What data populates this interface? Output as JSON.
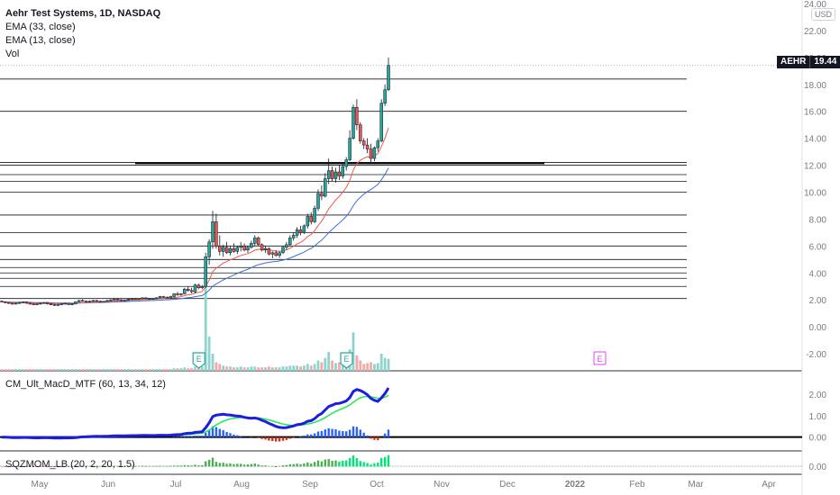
{
  "header": {
    "symbol_line": "Aehr Test Systems, 1D, NASDAQ",
    "ema_long": "EMA (33, close)",
    "ema_short": "EMA (13, close)",
    "volume": "Vol",
    "currency": "USD"
  },
  "price_label": {
    "ticker": "AEHR",
    "value": "19.44"
  },
  "indicators": {
    "macd": "CM_Ult_MacD_MTF (60, 13, 34, 12)",
    "sqzmom": "SQZMOM_LB (20, 2, 20, 1.5)"
  },
  "colors": {
    "up": "#26a69a",
    "down": "#ef5350",
    "ema13": "#f05a4a",
    "ema33": "#3d6fd4",
    "macd_line_up": "#2962ff",
    "macd_signal": "#2ee65a",
    "macd_line_down": "#1a1ee0",
    "hist_pos": "#00e5ff",
    "hist_neg": "#d0311a",
    "sqz_pos": "#00e676",
    "sqz_neg": "#7a1f1f",
    "earnings_teal": "#26a69a",
    "earnings_pink": "#e040fb"
  },
  "chart_data": {
    "type": "candlestick",
    "x_labels": [
      "May",
      "Jun",
      "Jul",
      "Aug",
      "Sep",
      "Oct",
      "Nov",
      "Dec",
      "2022",
      "Feb",
      "Mar",
      "Apr"
    ],
    "price_axis_ticks": [
      "24.00",
      "22.00",
      "20.00",
      "18.00",
      "16.00",
      "14.00",
      "12.00",
      "10.00",
      "8.00",
      "6.00",
      "4.00",
      "2.00",
      "0.00",
      "-2.00"
    ],
    "ylim": [
      -3,
      24
    ],
    "horizontal_levels": [
      18.4,
      16.0,
      12.2,
      12.0,
      11.3,
      10.8,
      10.0,
      8.3,
      7.0,
      6.0,
      5.0,
      4.4,
      4.0,
      3.6,
      3.0,
      2.1
    ],
    "support_line": {
      "value": 12.15
    },
    "candles": [
      [
        1.9,
        1.95,
        1.8,
        1.85
      ],
      [
        1.85,
        1.9,
        1.75,
        1.8
      ],
      [
        1.8,
        1.85,
        1.7,
        1.75
      ],
      [
        1.75,
        1.8,
        1.65,
        1.7
      ],
      [
        1.7,
        1.8,
        1.65,
        1.75
      ],
      [
        1.75,
        1.85,
        1.7,
        1.8
      ],
      [
        1.8,
        1.9,
        1.75,
        1.85
      ],
      [
        1.85,
        1.9,
        1.7,
        1.75
      ],
      [
        1.75,
        1.8,
        1.65,
        1.7
      ],
      [
        1.7,
        1.75,
        1.6,
        1.65
      ],
      [
        1.65,
        1.75,
        1.6,
        1.7
      ],
      [
        1.7,
        1.8,
        1.65,
        1.75
      ],
      [
        1.75,
        1.85,
        1.7,
        1.8
      ],
      [
        1.8,
        1.85,
        1.65,
        1.7
      ],
      [
        1.7,
        1.75,
        1.6,
        1.65
      ],
      [
        1.65,
        1.7,
        1.55,
        1.6
      ],
      [
        1.6,
        1.7,
        1.55,
        1.65
      ],
      [
        1.65,
        1.75,
        1.6,
        1.7
      ],
      [
        1.7,
        1.8,
        1.65,
        1.75
      ],
      [
        1.75,
        1.8,
        1.6,
        1.65
      ],
      [
        1.65,
        1.75,
        1.6,
        1.7
      ],
      [
        1.7,
        1.9,
        1.65,
        1.85
      ],
      [
        1.85,
        2.0,
        1.8,
        1.95
      ],
      [
        1.95,
        2.05,
        1.85,
        1.9
      ],
      [
        1.9,
        1.95,
        1.8,
        1.85
      ],
      [
        1.85,
        1.95,
        1.8,
        1.9
      ],
      [
        1.9,
        2.0,
        1.85,
        1.95
      ],
      [
        1.95,
        2.0,
        1.85,
        1.9
      ],
      [
        1.9,
        1.95,
        1.8,
        1.85
      ],
      [
        1.85,
        1.9,
        1.8,
        1.9
      ],
      [
        1.9,
        2.0,
        1.85,
        1.95
      ],
      [
        1.95,
        2.05,
        1.9,
        2.0
      ],
      [
        2.0,
        2.1,
        1.95,
        2.05
      ],
      [
        2.05,
        2.1,
        1.95,
        2.0
      ],
      [
        2.0,
        2.05,
        1.9,
        1.95
      ],
      [
        1.95,
        2.0,
        1.9,
        2.0
      ],
      [
        2.0,
        2.1,
        1.95,
        2.05
      ],
      [
        2.05,
        2.15,
        2.0,
        2.1
      ],
      [
        2.1,
        2.15,
        2.0,
        2.05
      ],
      [
        2.05,
        2.1,
        2.0,
        2.1
      ],
      [
        2.1,
        2.2,
        2.05,
        2.15
      ],
      [
        2.15,
        2.2,
        2.05,
        2.1
      ],
      [
        2.1,
        2.15,
        2.0,
        2.05
      ],
      [
        2.05,
        2.1,
        2.0,
        2.1
      ],
      [
        2.1,
        2.2,
        2.05,
        2.15
      ],
      [
        2.15,
        2.3,
        2.1,
        2.25
      ],
      [
        2.25,
        2.3,
        2.15,
        2.2
      ],
      [
        2.2,
        2.25,
        2.1,
        2.15
      ],
      [
        2.15,
        2.3,
        2.1,
        2.25
      ],
      [
        2.25,
        2.5,
        2.2,
        2.45
      ],
      [
        2.45,
        2.6,
        2.3,
        2.4
      ],
      [
        2.4,
        2.5,
        2.3,
        2.45
      ],
      [
        2.45,
        2.9,
        2.4,
        2.8
      ],
      [
        2.8,
        3.0,
        2.6,
        2.7
      ],
      [
        2.7,
        2.9,
        2.5,
        2.6
      ],
      [
        2.6,
        3.2,
        2.5,
        3.1
      ],
      [
        3.1,
        3.2,
        2.8,
        2.9
      ],
      [
        2.9,
        3.1,
        2.8,
        3.0
      ],
      [
        3.0,
        5.5,
        2.9,
        5.2
      ],
      [
        5.2,
        6.5,
        4.6,
        6.3
      ],
      [
        6.3,
        8.6,
        5.8,
        7.8
      ],
      [
        7.8,
        8.4,
        5.8,
        6.0
      ],
      [
        6.0,
        6.8,
        5.3,
        5.6
      ],
      [
        5.6,
        6.1,
        5.2,
        5.9
      ],
      [
        5.9,
        6.3,
        5.4,
        5.5
      ],
      [
        5.5,
        6.0,
        5.3,
        5.8
      ],
      [
        5.8,
        6.2,
        5.5,
        5.6
      ],
      [
        5.6,
        6.0,
        5.4,
        5.9
      ],
      [
        5.9,
        6.3,
        5.6,
        6.0
      ],
      [
        6.0,
        6.2,
        5.6,
        5.7
      ],
      [
        5.7,
        6.0,
        5.5,
        5.9
      ],
      [
        5.9,
        6.4,
        5.8,
        6.2
      ],
      [
        6.2,
        6.8,
        6.0,
        6.6
      ],
      [
        6.6,
        6.7,
        6.0,
        6.1
      ],
      [
        6.1,
        6.2,
        5.6,
        5.7
      ],
      [
        5.7,
        6.0,
        5.5,
        5.8
      ],
      [
        5.8,
        5.9,
        5.3,
        5.4
      ],
      [
        5.4,
        5.6,
        5.1,
        5.5
      ],
      [
        5.5,
        5.7,
        5.2,
        5.3
      ],
      [
        5.3,
        5.6,
        5.1,
        5.5
      ],
      [
        5.5,
        6.0,
        5.4,
        5.9
      ],
      [
        5.9,
        6.3,
        5.7,
        6.1
      ],
      [
        6.1,
        6.8,
        6.0,
        6.6
      ],
      [
        6.6,
        7.0,
        6.4,
        6.8
      ],
      [
        6.8,
        7.4,
        6.6,
        7.2
      ],
      [
        7.2,
        7.5,
        6.8,
        7.0
      ],
      [
        7.0,
        7.6,
        6.9,
        7.5
      ],
      [
        7.5,
        8.4,
        7.3,
        8.2
      ],
      [
        8.2,
        8.5,
        7.6,
        7.8
      ],
      [
        7.8,
        9.0,
        7.7,
        8.8
      ],
      [
        8.8,
        10.2,
        8.6,
        9.9
      ],
      [
        9.9,
        10.5,
        9.4,
        9.7
      ],
      [
        9.7,
        11.4,
        9.6,
        11.0
      ],
      [
        11.0,
        12.5,
        10.6,
        11.6
      ],
      [
        11.6,
        11.9,
        10.8,
        11.0
      ],
      [
        11.0,
        11.8,
        10.7,
        11.5
      ],
      [
        11.5,
        12.0,
        10.9,
        11.2
      ],
      [
        11.2,
        12.2,
        11.0,
        11.9
      ],
      [
        11.9,
        12.6,
        11.6,
        12.4
      ],
      [
        12.4,
        14.6,
        12.3,
        14.0
      ],
      [
        14.0,
        16.5,
        13.9,
        16.3
      ],
      [
        16.3,
        16.9,
        14.6,
        15.0
      ],
      [
        15.0,
        15.2,
        13.6,
        13.8
      ],
      [
        13.8,
        14.0,
        13.2,
        13.5
      ],
      [
        13.5,
        14.0,
        12.9,
        13.2
      ],
      [
        13.2,
        13.6,
        12.1,
        12.5
      ],
      [
        12.5,
        13.4,
        12.3,
        13.3
      ],
      [
        13.3,
        14.0,
        13.0,
        13.8
      ],
      [
        13.8,
        16.9,
        13.7,
        16.6
      ],
      [
        16.6,
        18.0,
        16.4,
        17.6
      ],
      [
        17.6,
        20.0,
        17.5,
        19.4
      ]
    ],
    "volume": [
      0.02,
      0.02,
      0.02,
      0.02,
      0.02,
      0.02,
      0.02,
      0.02,
      0.02,
      0.02,
      0.02,
      0.02,
      0.02,
      0.02,
      0.02,
      0.02,
      0.02,
      0.02,
      0.02,
      0.02,
      0.02,
      0.02,
      0.02,
      0.02,
      0.02,
      0.02,
      0.02,
      0.02,
      0.02,
      0.02,
      0.02,
      0.02,
      0.02,
      0.02,
      0.02,
      0.02,
      0.02,
      0.02,
      0.02,
      0.02,
      0.02,
      0.02,
      0.02,
      0.02,
      0.02,
      0.02,
      0.02,
      0.02,
      0.02,
      0.03,
      0.03,
      0.03,
      0.04,
      0.03,
      0.03,
      0.05,
      0.04,
      0.05,
      1.0,
      0.4,
      0.2,
      0.1,
      0.08,
      0.06,
      0.05,
      0.05,
      0.04,
      0.04,
      0.05,
      0.04,
      0.04,
      0.05,
      0.05,
      0.04,
      0.04,
      0.04,
      0.05,
      0.04,
      0.04,
      0.04,
      0.05,
      0.05,
      0.06,
      0.06,
      0.06,
      0.05,
      0.06,
      0.08,
      0.06,
      0.08,
      0.12,
      0.1,
      0.15,
      0.22,
      0.12,
      0.09,
      0.1,
      0.1,
      0.12,
      0.25,
      0.45,
      0.18,
      0.12,
      0.08,
      0.09,
      0.1,
      0.08,
      0.09,
      0.2,
      0.15,
      0.14
    ],
    "earnings_markers": [
      {
        "label": "E",
        "index": 58,
        "style": "past"
      },
      {
        "label": "E",
        "index": 100,
        "style": "past"
      },
      {
        "label": "E",
        "month_position": "early-Jan",
        "style": "upcoming"
      }
    ],
    "macd_panel": {
      "ylim": [
        -0.6,
        3.0
      ],
      "ticks": [
        "2.00",
        "1.00",
        "0.00"
      ]
    },
    "sqz_panel": {
      "ticks": [
        "0.00"
      ]
    }
  }
}
